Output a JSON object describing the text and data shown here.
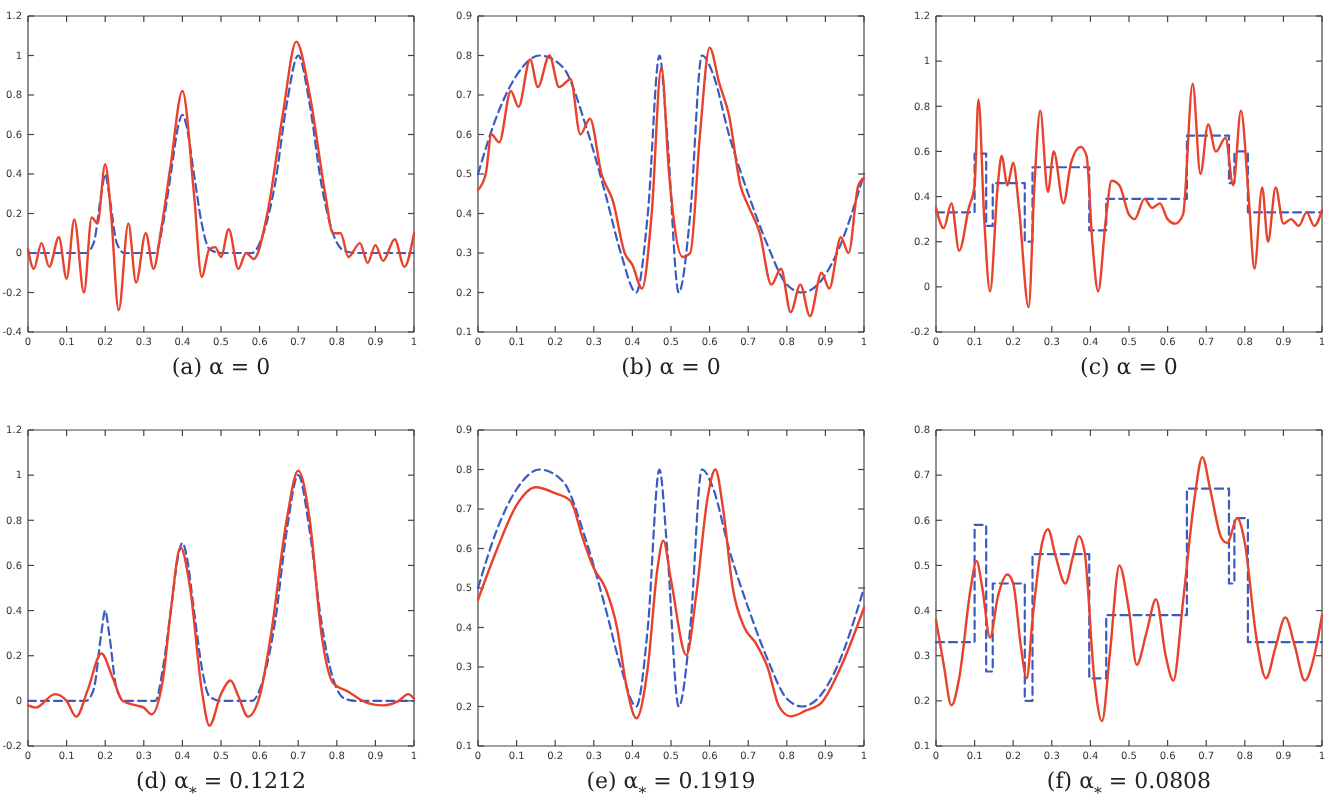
{
  "chart_data": [
    {
      "type": "line",
      "title": "(a)  α = 0",
      "xlim": [
        0,
        1
      ],
      "ylim": [
        -0.4,
        1.2
      ],
      "xticks": [
        0,
        0.1,
        0.2,
        0.3,
        0.4,
        0.5,
        0.6,
        0.7,
        0.8,
        0.9,
        1
      ],
      "yticks": [
        -0.4,
        -0.2,
        0,
        0.2,
        0.4,
        0.6,
        0.8,
        1,
        1.2
      ],
      "series": [
        {
          "color": "#3a5bbf",
          "line_style": "dashed",
          "x": [
            0,
            0.15,
            0.17,
            0.19,
            0.2,
            0.21,
            0.23,
            0.25,
            0.33,
            0.35,
            0.37,
            0.39,
            0.4,
            0.41,
            0.43,
            0.45,
            0.47,
            0.5,
            0.58,
            0.61,
            0.64,
            0.67,
            0.7,
            0.73,
            0.76,
            0.79,
            0.82,
            0.85,
            1
          ],
          "values": [
            0,
            0,
            0.05,
            0.3,
            0.4,
            0.3,
            0.05,
            0,
            0,
            0.15,
            0.4,
            0.65,
            0.7,
            0.65,
            0.4,
            0.15,
            0.02,
            0,
            0,
            0.1,
            0.35,
            0.75,
            1.0,
            0.75,
            0.35,
            0.1,
            0.01,
            0,
            0
          ]
        },
        {
          "color": "#e8412c",
          "line_style": "solid",
          "x": [
            0,
            0.015,
            0.035,
            0.055,
            0.08,
            0.1,
            0.12,
            0.145,
            0.165,
            0.18,
            0.2,
            0.215,
            0.235,
            0.26,
            0.28,
            0.305,
            0.325,
            0.345,
            0.37,
            0.4,
            0.43,
            0.45,
            0.47,
            0.485,
            0.5,
            0.52,
            0.545,
            0.565,
            0.585,
            0.62,
            0.66,
            0.695,
            0.73,
            0.77,
            0.79,
            0.81,
            0.83,
            0.86,
            0.88,
            0.9,
            0.92,
            0.95,
            0.975,
            1
          ],
          "values": [
            0.02,
            -0.08,
            0.05,
            -0.07,
            0.08,
            -0.13,
            0.17,
            -0.2,
            0.18,
            0.15,
            0.45,
            0.2,
            -0.29,
            0.15,
            -0.15,
            0.1,
            -0.08,
            0.12,
            0.45,
            0.82,
            0.3,
            -0.12,
            0.02,
            0.03,
            -0.02,
            0.12,
            -0.08,
            0,
            -0.03,
            0.2,
            0.7,
            1.07,
            0.8,
            0.3,
            0.1,
            0.1,
            -0.02,
            0.05,
            -0.05,
            0.04,
            -0.04,
            0.07,
            -0.07,
            0.1
          ]
        }
      ]
    },
    {
      "type": "line",
      "title": "(b)  α = 0",
      "xlim": [
        0,
        1
      ],
      "ylim": [
        0.1,
        0.9
      ],
      "xticks": [
        0,
        0.1,
        0.2,
        0.3,
        0.4,
        0.5,
        0.6,
        0.7,
        0.8,
        0.9,
        1
      ],
      "yticks": [
        0.1,
        0.2,
        0.3,
        0.4,
        0.5,
        0.6,
        0.7,
        0.8,
        0.9
      ],
      "series": [
        {
          "color": "#3a5bbf",
          "line_style": "dashed",
          "x": [
            0,
            0.05,
            0.1,
            0.16,
            0.22,
            0.28,
            0.33,
            0.37,
            0.41,
            0.44,
            0.47,
            0.49,
            0.52,
            0.55,
            0.58,
            0.61,
            0.65,
            0.7,
            0.75,
            0.8,
            0.84,
            0.88,
            0.93,
            1
          ],
          "values": [
            0.5,
            0.65,
            0.75,
            0.8,
            0.77,
            0.62,
            0.45,
            0.3,
            0.2,
            0.4,
            0.8,
            0.6,
            0.2,
            0.4,
            0.8,
            0.75,
            0.6,
            0.45,
            0.32,
            0.22,
            0.2,
            0.22,
            0.3,
            0.5
          ]
        },
        {
          "color": "#e8412c",
          "line_style": "solid",
          "x": [
            0,
            0.02,
            0.035,
            0.055,
            0.085,
            0.105,
            0.135,
            0.155,
            0.185,
            0.21,
            0.24,
            0.265,
            0.29,
            0.32,
            0.35,
            0.38,
            0.4,
            0.425,
            0.45,
            0.475,
            0.495,
            0.53,
            0.55,
            0.575,
            0.6,
            0.625,
            0.65,
            0.68,
            0.7,
            0.73,
            0.76,
            0.785,
            0.81,
            0.835,
            0.86,
            0.89,
            0.91,
            0.94,
            0.96,
            0.985,
            1
          ],
          "values": [
            0.46,
            0.5,
            0.6,
            0.58,
            0.71,
            0.67,
            0.79,
            0.72,
            0.8,
            0.72,
            0.74,
            0.6,
            0.64,
            0.5,
            0.43,
            0.3,
            0.27,
            0.21,
            0.4,
            0.77,
            0.5,
            0.29,
            0.3,
            0.6,
            0.82,
            0.73,
            0.65,
            0.47,
            0.42,
            0.35,
            0.22,
            0.26,
            0.15,
            0.22,
            0.14,
            0.25,
            0.21,
            0.34,
            0.3,
            0.47,
            0.49
          ]
        }
      ]
    },
    {
      "type": "line",
      "title": "(c)  α = 0",
      "xlim": [
        0,
        1
      ],
      "ylim": [
        -0.2,
        1.2
      ],
      "xticks": [
        0,
        0.1,
        0.2,
        0.3,
        0.4,
        0.5,
        0.6,
        0.7,
        0.8,
        0.9,
        1
      ],
      "yticks": [
        -0.2,
        0,
        0.2,
        0.4,
        0.6,
        0.8,
        1,
        1.2
      ],
      "series": [
        {
          "type": "step",
          "color": "#3a5bbf",
          "line_style": "dashed",
          "x": [
            0,
            0.1,
            0.13,
            0.147,
            0.23,
            0.25,
            0.397,
            0.441,
            0.65,
            0.759,
            0.773,
            0.808,
            1
          ],
          "values": [
            0.33,
            0.59,
            0.27,
            0.46,
            0.2,
            0.53,
            0.25,
            0.39,
            0.67,
            0.46,
            0.6,
            0.33,
            0.33
          ]
        },
        {
          "color": "#e8412c",
          "line_style": "solid",
          "x": [
            0,
            0.02,
            0.04,
            0.06,
            0.085,
            0.1,
            0.11,
            0.125,
            0.14,
            0.16,
            0.17,
            0.185,
            0.2,
            0.215,
            0.24,
            0.255,
            0.27,
            0.29,
            0.305,
            0.33,
            0.35,
            0.375,
            0.39,
            0.405,
            0.42,
            0.44,
            0.455,
            0.475,
            0.5,
            0.515,
            0.54,
            0.56,
            0.58,
            0.6,
            0.62,
            0.64,
            0.665,
            0.685,
            0.705,
            0.725,
            0.75,
            0.77,
            0.79,
            0.81,
            0.825,
            0.845,
            0.86,
            0.88,
            0.9,
            0.92,
            0.94,
            0.96,
            0.98,
            1
          ],
          "values": [
            0.35,
            0.26,
            0.37,
            0.16,
            0.35,
            0.45,
            0.83,
            0.3,
            -0.02,
            0.45,
            0.58,
            0.45,
            0.55,
            0.35,
            -0.09,
            0.45,
            0.78,
            0.42,
            0.6,
            0.37,
            0.55,
            0.62,
            0.58,
            0.2,
            -0.02,
            0.3,
            0.47,
            0.45,
            0.32,
            0.3,
            0.39,
            0.35,
            0.37,
            0.3,
            0.28,
            0.32,
            0.9,
            0.5,
            0.72,
            0.6,
            0.66,
            0.45,
            0.78,
            0.4,
            0.08,
            0.44,
            0.2,
            0.44,
            0.28,
            0.3,
            0.27,
            0.33,
            0.27,
            0.34
          ]
        }
      ]
    },
    {
      "type": "line",
      "title": "(d)  α$_{*}$ = 0.1212",
      "xlim": [
        0,
        1
      ],
      "ylim": [
        -0.2,
        1.2
      ],
      "xticks": [
        0,
        0.1,
        0.2,
        0.3,
        0.4,
        0.5,
        0.6,
        0.7,
        0.8,
        0.9,
        1
      ],
      "yticks": [
        -0.2,
        0,
        0.2,
        0.4,
        0.6,
        0.8,
        1,
        1.2
      ],
      "series": [
        {
          "color": "#3a5bbf",
          "line_style": "dashed",
          "x": [
            0,
            0.15,
            0.17,
            0.19,
            0.2,
            0.21,
            0.23,
            0.25,
            0.33,
            0.35,
            0.37,
            0.39,
            0.4,
            0.41,
            0.43,
            0.45,
            0.47,
            0.5,
            0.58,
            0.61,
            0.64,
            0.67,
            0.7,
            0.73,
            0.76,
            0.79,
            0.82,
            0.85,
            1
          ],
          "values": [
            0,
            0,
            0.05,
            0.3,
            0.4,
            0.3,
            0.05,
            0,
            0,
            0.15,
            0.4,
            0.65,
            0.7,
            0.65,
            0.4,
            0.15,
            0.02,
            0,
            0,
            0.1,
            0.35,
            0.75,
            1.0,
            0.75,
            0.35,
            0.1,
            0.01,
            0,
            0
          ]
        },
        {
          "color": "#e8412c",
          "line_style": "solid",
          "x": [
            0,
            0.02,
            0.07,
            0.1,
            0.125,
            0.155,
            0.19,
            0.22,
            0.245,
            0.28,
            0.3,
            0.32,
            0.35,
            0.37,
            0.395,
            0.42,
            0.45,
            0.47,
            0.5,
            0.525,
            0.545,
            0.57,
            0.6,
            0.63,
            0.67,
            0.7,
            0.73,
            0.76,
            0.79,
            0.83,
            0.88,
            0.92,
            0.96,
            0.985,
            1
          ],
          "values": [
            -0.02,
            -0.03,
            0.03,
            0,
            -0.07,
            0.05,
            0.21,
            0.1,
            0,
            -0.02,
            -0.03,
            -0.06,
            0.1,
            0.4,
            0.68,
            0.5,
            0.05,
            -0.11,
            0.03,
            0.09,
            0.02,
            -0.07,
            0.02,
            0.3,
            0.8,
            1.02,
            0.8,
            0.3,
            0.08,
            0.04,
            -0.01,
            -0.02,
            0,
            0.03,
            0.01
          ]
        }
      ]
    },
    {
      "type": "line",
      "title": "(e)  α$_{*}$ = 0.1919",
      "xlim": [
        0,
        1
      ],
      "ylim": [
        0.1,
        0.9
      ],
      "xticks": [
        0,
        0.1,
        0.2,
        0.3,
        0.4,
        0.5,
        0.6,
        0.7,
        0.8,
        0.9,
        1
      ],
      "yticks": [
        0.1,
        0.2,
        0.3,
        0.4,
        0.5,
        0.6,
        0.7,
        0.8,
        0.9
      ],
      "series": [
        {
          "color": "#3a5bbf",
          "line_style": "dashed",
          "x": [
            0,
            0.05,
            0.1,
            0.16,
            0.22,
            0.28,
            0.33,
            0.37,
            0.41,
            0.44,
            0.47,
            0.49,
            0.52,
            0.55,
            0.58,
            0.61,
            0.65,
            0.7,
            0.75,
            0.8,
            0.84,
            0.88,
            0.93,
            1
          ],
          "values": [
            0.5,
            0.65,
            0.75,
            0.8,
            0.77,
            0.62,
            0.45,
            0.3,
            0.2,
            0.4,
            0.8,
            0.6,
            0.2,
            0.4,
            0.8,
            0.75,
            0.6,
            0.45,
            0.32,
            0.22,
            0.2,
            0.22,
            0.3,
            0.5
          ]
        },
        {
          "color": "#e8412c",
          "line_style": "solid",
          "x": [
            0,
            0.05,
            0.1,
            0.15,
            0.2,
            0.24,
            0.27,
            0.3,
            0.33,
            0.36,
            0.385,
            0.41,
            0.44,
            0.465,
            0.48,
            0.5,
            0.54,
            0.565,
            0.595,
            0.615,
            0.635,
            0.66,
            0.69,
            0.72,
            0.75,
            0.78,
            0.81,
            0.85,
            0.89,
            0.94,
            1
          ],
          "values": [
            0.47,
            0.6,
            0.71,
            0.755,
            0.74,
            0.72,
            0.63,
            0.55,
            0.5,
            0.4,
            0.25,
            0.17,
            0.3,
            0.55,
            0.62,
            0.52,
            0.33,
            0.48,
            0.73,
            0.8,
            0.7,
            0.5,
            0.4,
            0.36,
            0.3,
            0.2,
            0.175,
            0.19,
            0.21,
            0.3,
            0.45
          ]
        }
      ]
    },
    {
      "type": "line",
      "title": "(f)  α$_{*}$ = 0.0808",
      "xlim": [
        0,
        1
      ],
      "ylim": [
        0.1,
        0.8
      ],
      "xticks": [
        0,
        0.1,
        0.2,
        0.3,
        0.4,
        0.5,
        0.6,
        0.7,
        0.8,
        0.9,
        1
      ],
      "yticks": [
        0.1,
        0.2,
        0.3,
        0.4,
        0.5,
        0.6,
        0.7,
        0.8
      ],
      "series": [
        {
          "type": "step",
          "color": "#3a5bbf",
          "line_style": "dashed",
          "x": [
            0,
            0.1,
            0.13,
            0.147,
            0.23,
            0.25,
            0.397,
            0.441,
            0.65,
            0.759,
            0.773,
            0.808,
            1
          ],
          "values": [
            0.33,
            0.59,
            0.265,
            0.46,
            0.2,
            0.525,
            0.25,
            0.39,
            0.67,
            0.46,
            0.605,
            0.33,
            0.33
          ]
        },
        {
          "color": "#e8412c",
          "line_style": "solid",
          "x": [
            0,
            0.02,
            0.04,
            0.06,
            0.09,
            0.105,
            0.12,
            0.14,
            0.16,
            0.185,
            0.2,
            0.22,
            0.235,
            0.25,
            0.275,
            0.29,
            0.31,
            0.335,
            0.355,
            0.37,
            0.385,
            0.41,
            0.43,
            0.45,
            0.475,
            0.5,
            0.52,
            0.545,
            0.57,
            0.595,
            0.615,
            0.64,
            0.67,
            0.69,
            0.71,
            0.74,
            0.755,
            0.78,
            0.8,
            0.83,
            0.855,
            0.88,
            0.905,
            0.93,
            0.955,
            0.98,
            1
          ],
          "values": [
            0.38,
            0.28,
            0.19,
            0.25,
            0.45,
            0.51,
            0.45,
            0.34,
            0.43,
            0.48,
            0.46,
            0.32,
            0.25,
            0.38,
            0.55,
            0.58,
            0.52,
            0.46,
            0.52,
            0.565,
            0.53,
            0.25,
            0.155,
            0.3,
            0.5,
            0.4,
            0.28,
            0.35,
            0.425,
            0.3,
            0.245,
            0.42,
            0.65,
            0.74,
            0.67,
            0.56,
            0.55,
            0.605,
            0.55,
            0.34,
            0.25,
            0.32,
            0.385,
            0.32,
            0.245,
            0.3,
            0.39
          ]
        }
      ]
    }
  ]
}
